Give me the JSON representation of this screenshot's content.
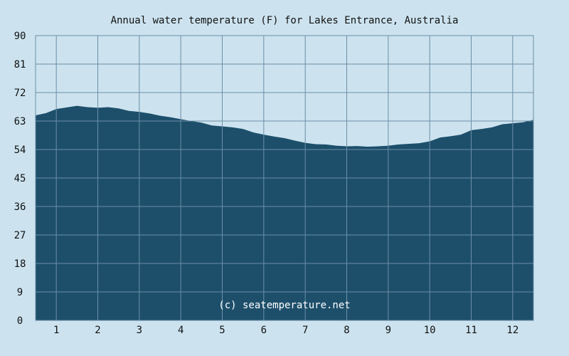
{
  "chart_data": {
    "type": "area",
    "title": "Annual water temperature (F) for Lakes Entrance, Australia",
    "xlabel": "",
    "ylabel": "",
    "x_ticks": [
      "1",
      "2",
      "3",
      "4",
      "5",
      "6",
      "7",
      "8",
      "9",
      "10",
      "11",
      "12"
    ],
    "y_ticks": [
      0,
      9,
      18,
      27,
      36,
      45,
      54,
      63,
      72,
      81,
      90
    ],
    "xlim": [
      0.5,
      12.5
    ],
    "ylim": [
      0,
      90
    ],
    "grid": true,
    "legend": "none",
    "watermark": "(c) seatemperature.net",
    "colors": {
      "background": "#cce3ef",
      "area_fill": "#1d4f6b",
      "grid_line": "#6b8ea6",
      "text": "#111111",
      "watermark": "#ffffff"
    },
    "series": [
      {
        "x": [
          0.5,
          0.75,
          1.0,
          1.25,
          1.5,
          1.75,
          2.0,
          2.25,
          2.5,
          2.75,
          3.0,
          3.25,
          3.5,
          3.75,
          4.0,
          4.25,
          4.5,
          4.75,
          5.0,
          5.25,
          5.5,
          5.75,
          6.0,
          6.25,
          6.5,
          6.75,
          7.0,
          7.25,
          7.5,
          7.75,
          8.0,
          8.25,
          8.5,
          8.75,
          9.0,
          9.25,
          9.5,
          9.75,
          10.0,
          10.25,
          10.5,
          10.75,
          11.0,
          11.25,
          11.5,
          11.75,
          12.0,
          12.25,
          12.5
        ],
        "values": [
          64.8,
          65.5,
          66.8,
          67.3,
          67.8,
          67.4,
          67.2,
          67.4,
          67.0,
          66.2,
          65.9,
          65.4,
          64.7,
          64.2,
          63.6,
          63.0,
          62.5,
          61.6,
          61.3,
          61.0,
          60.5,
          59.4,
          58.7,
          58.1,
          57.6,
          56.8,
          56.1,
          55.7,
          55.6,
          55.2,
          55.0,
          55.1,
          54.9,
          55.0,
          55.2,
          55.6,
          55.8,
          56.0,
          56.6,
          57.8,
          58.2,
          58.7,
          60.1,
          60.5,
          61.0,
          62.0,
          62.3,
          62.6,
          63.4
        ]
      }
    ]
  }
}
